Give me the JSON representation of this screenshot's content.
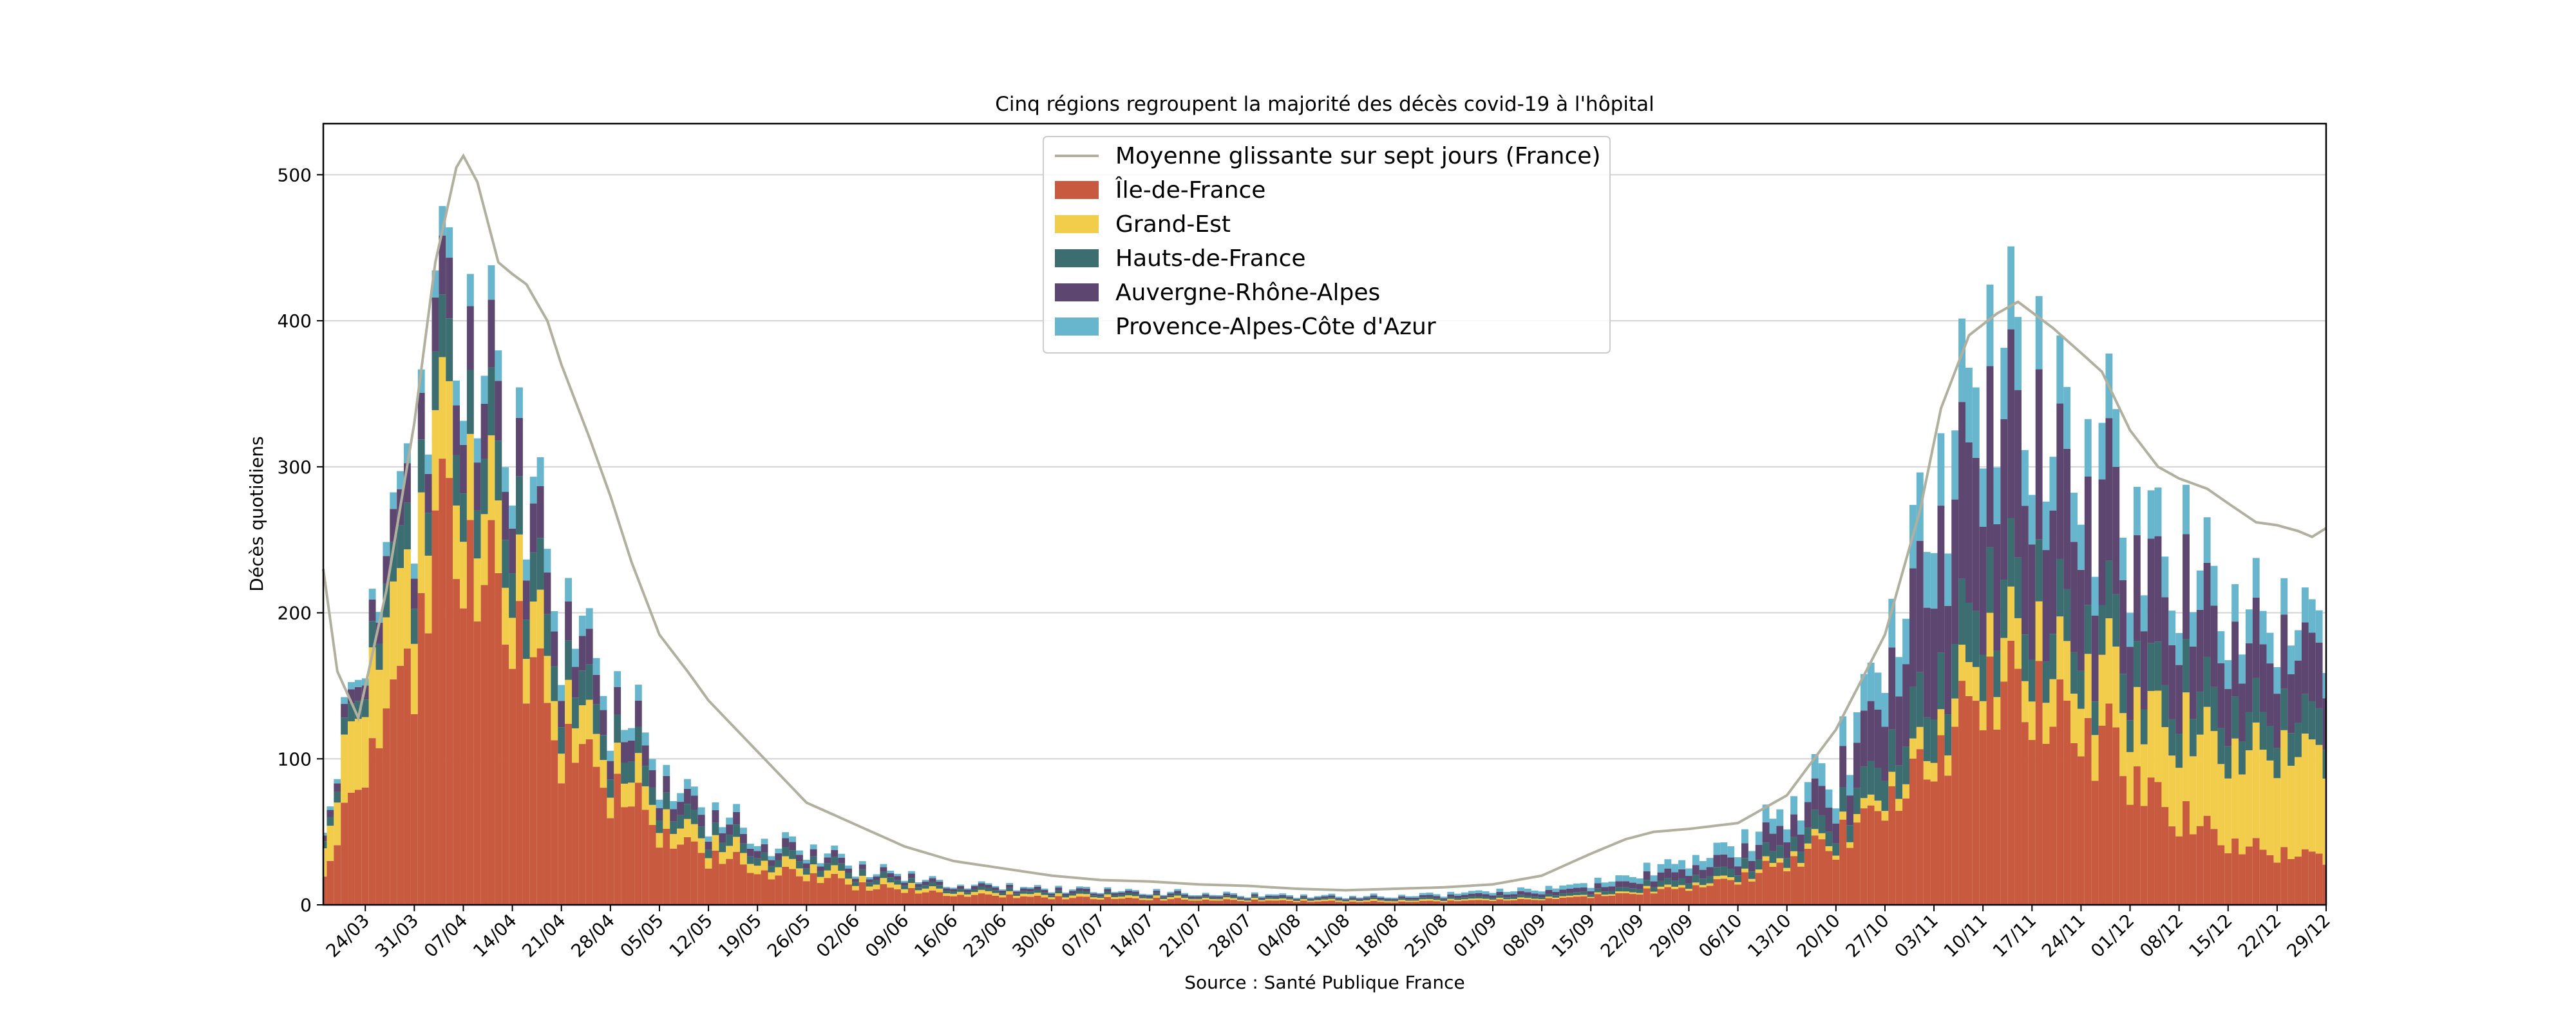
{
  "chart_data": {
    "type": "bar",
    "stacked": true,
    "title": "Cinq régions regroupent la majorité des décès covid-19 à l'hôpital",
    "ylabel": "Décès quotidiens",
    "xlabel": "Source : Santé Publique France",
    "ylim": [
      0,
      535
    ],
    "yticks": [
      0,
      100,
      200,
      300,
      400,
      500
    ],
    "grid": "horizontal",
    "legend_position": "top-center",
    "colors": {
      "Île-de-France": "#c85a3f",
      "Grand-Est": "#f2cc4b",
      "Hauts-de-France": "#3c6e71",
      "Auvergne-Rhône-Alpes": "#5d4670",
      "Provence-Alpes-Côte d'Azur": "#67b6cd",
      "line": "#b1b09f"
    },
    "legend": [
      {
        "label": "Moyenne glissante sur sept jours (France)",
        "kind": "line",
        "color": "#b1b09f"
      },
      {
        "label": "Île-de-France",
        "kind": "box",
        "color": "#c85a3f"
      },
      {
        "label": "Grand-Est",
        "kind": "box",
        "color": "#f2cc4b"
      },
      {
        "label": "Hauts-de-France",
        "kind": "box",
        "color": "#3c6e71"
      },
      {
        "label": "Auvergne-Rhône-Alpes",
        "kind": "box",
        "color": "#5d4670"
      },
      {
        "label": "Provence-Alpes-Côte d'Azur",
        "kind": "box",
        "color": "#67b6cd"
      }
    ],
    "xticks": [
      "24/03",
      "31/03",
      "07/04",
      "14/04",
      "21/04",
      "28/04",
      "05/05",
      "12/05",
      "19/05",
      "26/05",
      "02/06",
      "09/06",
      "16/06",
      "23/06",
      "30/06",
      "07/07",
      "14/07",
      "21/07",
      "28/07",
      "04/08",
      "11/08",
      "18/08",
      "25/08",
      "01/09",
      "08/09",
      "15/09",
      "22/09",
      "29/09",
      "06/10",
      "13/10",
      "20/10",
      "27/10",
      "03/11",
      "10/11",
      "17/11",
      "24/11",
      "01/12",
      "08/12",
      "15/12",
      "22/12",
      "29/12"
    ],
    "start_date": "2020-03-18",
    "end_date": "2020-12-29",
    "series_order": [
      "Île-de-France",
      "Grand-Est",
      "Hauts-de-France",
      "Auvergne-Rhône-Alpes",
      "Provence-Alpes-Côte d'Azur"
    ],
    "series_keyframes": {
      "Île-de-France": [
        [
          "2020-03-18",
          20
        ],
        [
          "2020-03-24",
          100
        ],
        [
          "2020-03-31",
          190
        ],
        [
          "2020-04-04",
          270
        ],
        [
          "2020-04-07",
          245
        ],
        [
          "2020-04-14",
          185
        ],
        [
          "2020-04-21",
          115
        ],
        [
          "2020-04-28",
          85
        ],
        [
          "2020-05-05",
          55
        ],
        [
          "2020-05-12",
          35
        ],
        [
          "2020-05-19",
          25
        ],
        [
          "2020-05-26",
          20
        ],
        [
          "2020-06-02",
          14
        ],
        [
          "2020-06-09",
          10
        ],
        [
          "2020-06-16",
          7
        ],
        [
          "2020-06-30",
          5
        ],
        [
          "2020-07-28",
          3
        ],
        [
          "2020-08-18",
          2
        ],
        [
          "2020-09-08",
          4
        ],
        [
          "2020-09-15",
          6
        ],
        [
          "2020-09-29",
          12
        ],
        [
          "2020-10-06",
          18
        ],
        [
          "2020-10-13",
          30
        ],
        [
          "2020-10-20",
          45
        ],
        [
          "2020-10-27",
          70
        ],
        [
          "2020-11-03",
          100
        ],
        [
          "2020-11-10",
          150
        ],
        [
          "2020-11-17",
          150
        ],
        [
          "2020-11-24",
          125
        ],
        [
          "2020-12-01",
          95
        ],
        [
          "2020-12-08",
          60
        ],
        [
          "2020-12-15",
          45
        ],
        [
          "2020-12-22",
          35
        ],
        [
          "2020-12-29",
          35
        ]
      ],
      "Grand-Est": [
        [
          "2020-03-18",
          20
        ],
        [
          "2020-03-24",
          60
        ],
        [
          "2020-03-31",
          70
        ],
        [
          "2020-04-07",
          55
        ],
        [
          "2020-04-14",
          40
        ],
        [
          "2020-04-21",
          28
        ],
        [
          "2020-04-28",
          20
        ],
        [
          "2020-05-05",
          14
        ],
        [
          "2020-05-12",
          10
        ],
        [
          "2020-05-19",
          7
        ],
        [
          "2020-06-02",
          4
        ],
        [
          "2020-06-16",
          2
        ],
        [
          "2020-07-28",
          1
        ],
        [
          "2020-08-18",
          1
        ],
        [
          "2020-09-15",
          1
        ],
        [
          "2020-10-06",
          2
        ],
        [
          "2020-10-20",
          4
        ],
        [
          "2020-10-27",
          8
        ],
        [
          "2020-11-03",
          15
        ],
        [
          "2020-11-10",
          25
        ],
        [
          "2020-11-17",
          35
        ],
        [
          "2020-11-24",
          40
        ],
        [
          "2020-12-01",
          50
        ],
        [
          "2020-12-08",
          60
        ],
        [
          "2020-12-15",
          65
        ],
        [
          "2020-12-22",
          70
        ],
        [
          "2020-12-29",
          75
        ]
      ],
      "Hauts-de-France": [
        [
          "2020-03-18",
          5
        ],
        [
          "2020-03-24",
          15
        ],
        [
          "2020-03-31",
          35
        ],
        [
          "2020-04-07",
          40
        ],
        [
          "2020-04-14",
          35
        ],
        [
          "2020-04-21",
          25
        ],
        [
          "2020-04-28",
          18
        ],
        [
          "2020-05-05",
          12
        ],
        [
          "2020-05-12",
          8
        ],
        [
          "2020-05-19",
          6
        ],
        [
          "2020-06-02",
          4
        ],
        [
          "2020-06-16",
          2
        ],
        [
          "2020-07-28",
          1
        ],
        [
          "2020-08-18",
          1
        ],
        [
          "2020-09-15",
          2
        ],
        [
          "2020-10-06",
          6
        ],
        [
          "2020-10-20",
          12
        ],
        [
          "2020-10-27",
          25
        ],
        [
          "2020-11-03",
          35
        ],
        [
          "2020-11-10",
          40
        ],
        [
          "2020-11-17",
          38
        ],
        [
          "2020-11-24",
          32
        ],
        [
          "2020-12-01",
          30
        ],
        [
          "2020-12-08",
          30
        ],
        [
          "2020-12-15",
          28
        ],
        [
          "2020-12-22",
          25
        ],
        [
          "2020-12-29",
          25
        ]
      ],
      "Auvergne-Rhône-Alpes": [
        [
          "2020-03-18",
          4
        ],
        [
          "2020-03-24",
          12
        ],
        [
          "2020-03-31",
          30
        ],
        [
          "2020-04-07",
          40
        ],
        [
          "2020-04-14",
          35
        ],
        [
          "2020-04-21",
          25
        ],
        [
          "2020-04-28",
          18
        ],
        [
          "2020-05-05",
          12
        ],
        [
          "2020-05-12",
          8
        ],
        [
          "2020-05-19",
          6
        ],
        [
          "2020-06-02",
          3
        ],
        [
          "2020-06-16",
          2
        ],
        [
          "2020-07-28",
          1
        ],
        [
          "2020-08-18",
          1
        ],
        [
          "2020-09-15",
          3
        ],
        [
          "2020-10-06",
          8
        ],
        [
          "2020-10-20",
          20
        ],
        [
          "2020-10-27",
          45
        ],
        [
          "2020-11-03",
          90
        ],
        [
          "2020-11-10",
          110
        ],
        [
          "2020-11-17",
          105
        ],
        [
          "2020-11-24",
          85
        ],
        [
          "2020-12-01",
          70
        ],
        [
          "2020-12-08",
          60
        ],
        [
          "2020-12-15",
          50
        ],
        [
          "2020-12-22",
          45
        ],
        [
          "2020-12-29",
          45
        ]
      ],
      "Provence-Alpes-Côte d'Azur": [
        [
          "2020-03-18",
          2
        ],
        [
          "2020-03-24",
          6
        ],
        [
          "2020-03-31",
          15
        ],
        [
          "2020-04-07",
          20
        ],
        [
          "2020-04-14",
          18
        ],
        [
          "2020-04-21",
          15
        ],
        [
          "2020-04-28",
          10
        ],
        [
          "2020-05-05",
          8
        ],
        [
          "2020-05-12",
          5
        ],
        [
          "2020-05-19",
          4
        ],
        [
          "2020-06-02",
          2
        ],
        [
          "2020-06-16",
          1
        ],
        [
          "2020-07-28",
          1
        ],
        [
          "2020-08-18",
          1
        ],
        [
          "2020-09-15",
          3
        ],
        [
          "2020-10-06",
          8
        ],
        [
          "2020-10-20",
          15
        ],
        [
          "2020-10-27",
          28
        ],
        [
          "2020-11-03",
          45
        ],
        [
          "2020-11-10",
          50
        ],
        [
          "2020-11-17",
          45
        ],
        [
          "2020-11-24",
          38
        ],
        [
          "2020-12-01",
          32
        ],
        [
          "2020-12-08",
          28
        ],
        [
          "2020-12-15",
          25
        ],
        [
          "2020-12-22",
          22
        ],
        [
          "2020-12-29",
          22
        ]
      ]
    },
    "moving_average_keyframes": [
      [
        "2020-03-18",
        230
      ],
      [
        "2020-03-20",
        160
      ],
      [
        "2020-03-23",
        128
      ],
      [
        "2020-03-27",
        215
      ],
      [
        "2020-03-31",
        330
      ],
      [
        "2020-04-03",
        440
      ],
      [
        "2020-04-06",
        505
      ],
      [
        "2020-04-07",
        513
      ],
      [
        "2020-04-09",
        495
      ],
      [
        "2020-04-12",
        440
      ],
      [
        "2020-04-14",
        432
      ],
      [
        "2020-04-16",
        425
      ],
      [
        "2020-04-19",
        400
      ],
      [
        "2020-04-21",
        370
      ],
      [
        "2020-04-25",
        320
      ],
      [
        "2020-04-28",
        280
      ],
      [
        "2020-05-01",
        235
      ],
      [
        "2020-05-05",
        185
      ],
      [
        "2020-05-09",
        160
      ],
      [
        "2020-05-12",
        140
      ],
      [
        "2020-05-16",
        120
      ],
      [
        "2020-05-20",
        100
      ],
      [
        "2020-05-23",
        85
      ],
      [
        "2020-05-26",
        70
      ],
      [
        "2020-06-02",
        55
      ],
      [
        "2020-06-09",
        40
      ],
      [
        "2020-06-16",
        30
      ],
      [
        "2020-06-23",
        25
      ],
      [
        "2020-06-30",
        20
      ],
      [
        "2020-07-07",
        17
      ],
      [
        "2020-07-14",
        16
      ],
      [
        "2020-07-21",
        14
      ],
      [
        "2020-07-28",
        13
      ],
      [
        "2020-08-04",
        11
      ],
      [
        "2020-08-11",
        10
      ],
      [
        "2020-08-18",
        11
      ],
      [
        "2020-08-25",
        12
      ],
      [
        "2020-09-01",
        14
      ],
      [
        "2020-09-08",
        20
      ],
      [
        "2020-09-15",
        35
      ],
      [
        "2020-09-20",
        45
      ],
      [
        "2020-09-24",
        50
      ],
      [
        "2020-09-29",
        52
      ],
      [
        "2020-10-06",
        56
      ],
      [
        "2020-10-13",
        75
      ],
      [
        "2020-10-20",
        120
      ],
      [
        "2020-10-27",
        185
      ],
      [
        "2020-11-01",
        270
      ],
      [
        "2020-11-04",
        340
      ],
      [
        "2020-11-08",
        390
      ],
      [
        "2020-11-12",
        405
      ],
      [
        "2020-11-15",
        413
      ],
      [
        "2020-11-20",
        395
      ],
      [
        "2020-11-24",
        378
      ],
      [
        "2020-11-27",
        365
      ],
      [
        "2020-12-01",
        325
      ],
      [
        "2020-12-05",
        300
      ],
      [
        "2020-12-08",
        292
      ],
      [
        "2020-12-12",
        285
      ],
      [
        "2020-12-15",
        275
      ],
      [
        "2020-12-19",
        262
      ],
      [
        "2020-12-22",
        260
      ],
      [
        "2020-12-25",
        256
      ],
      [
        "2020-12-27",
        252
      ],
      [
        "2020-12-29",
        258
      ]
    ]
  }
}
